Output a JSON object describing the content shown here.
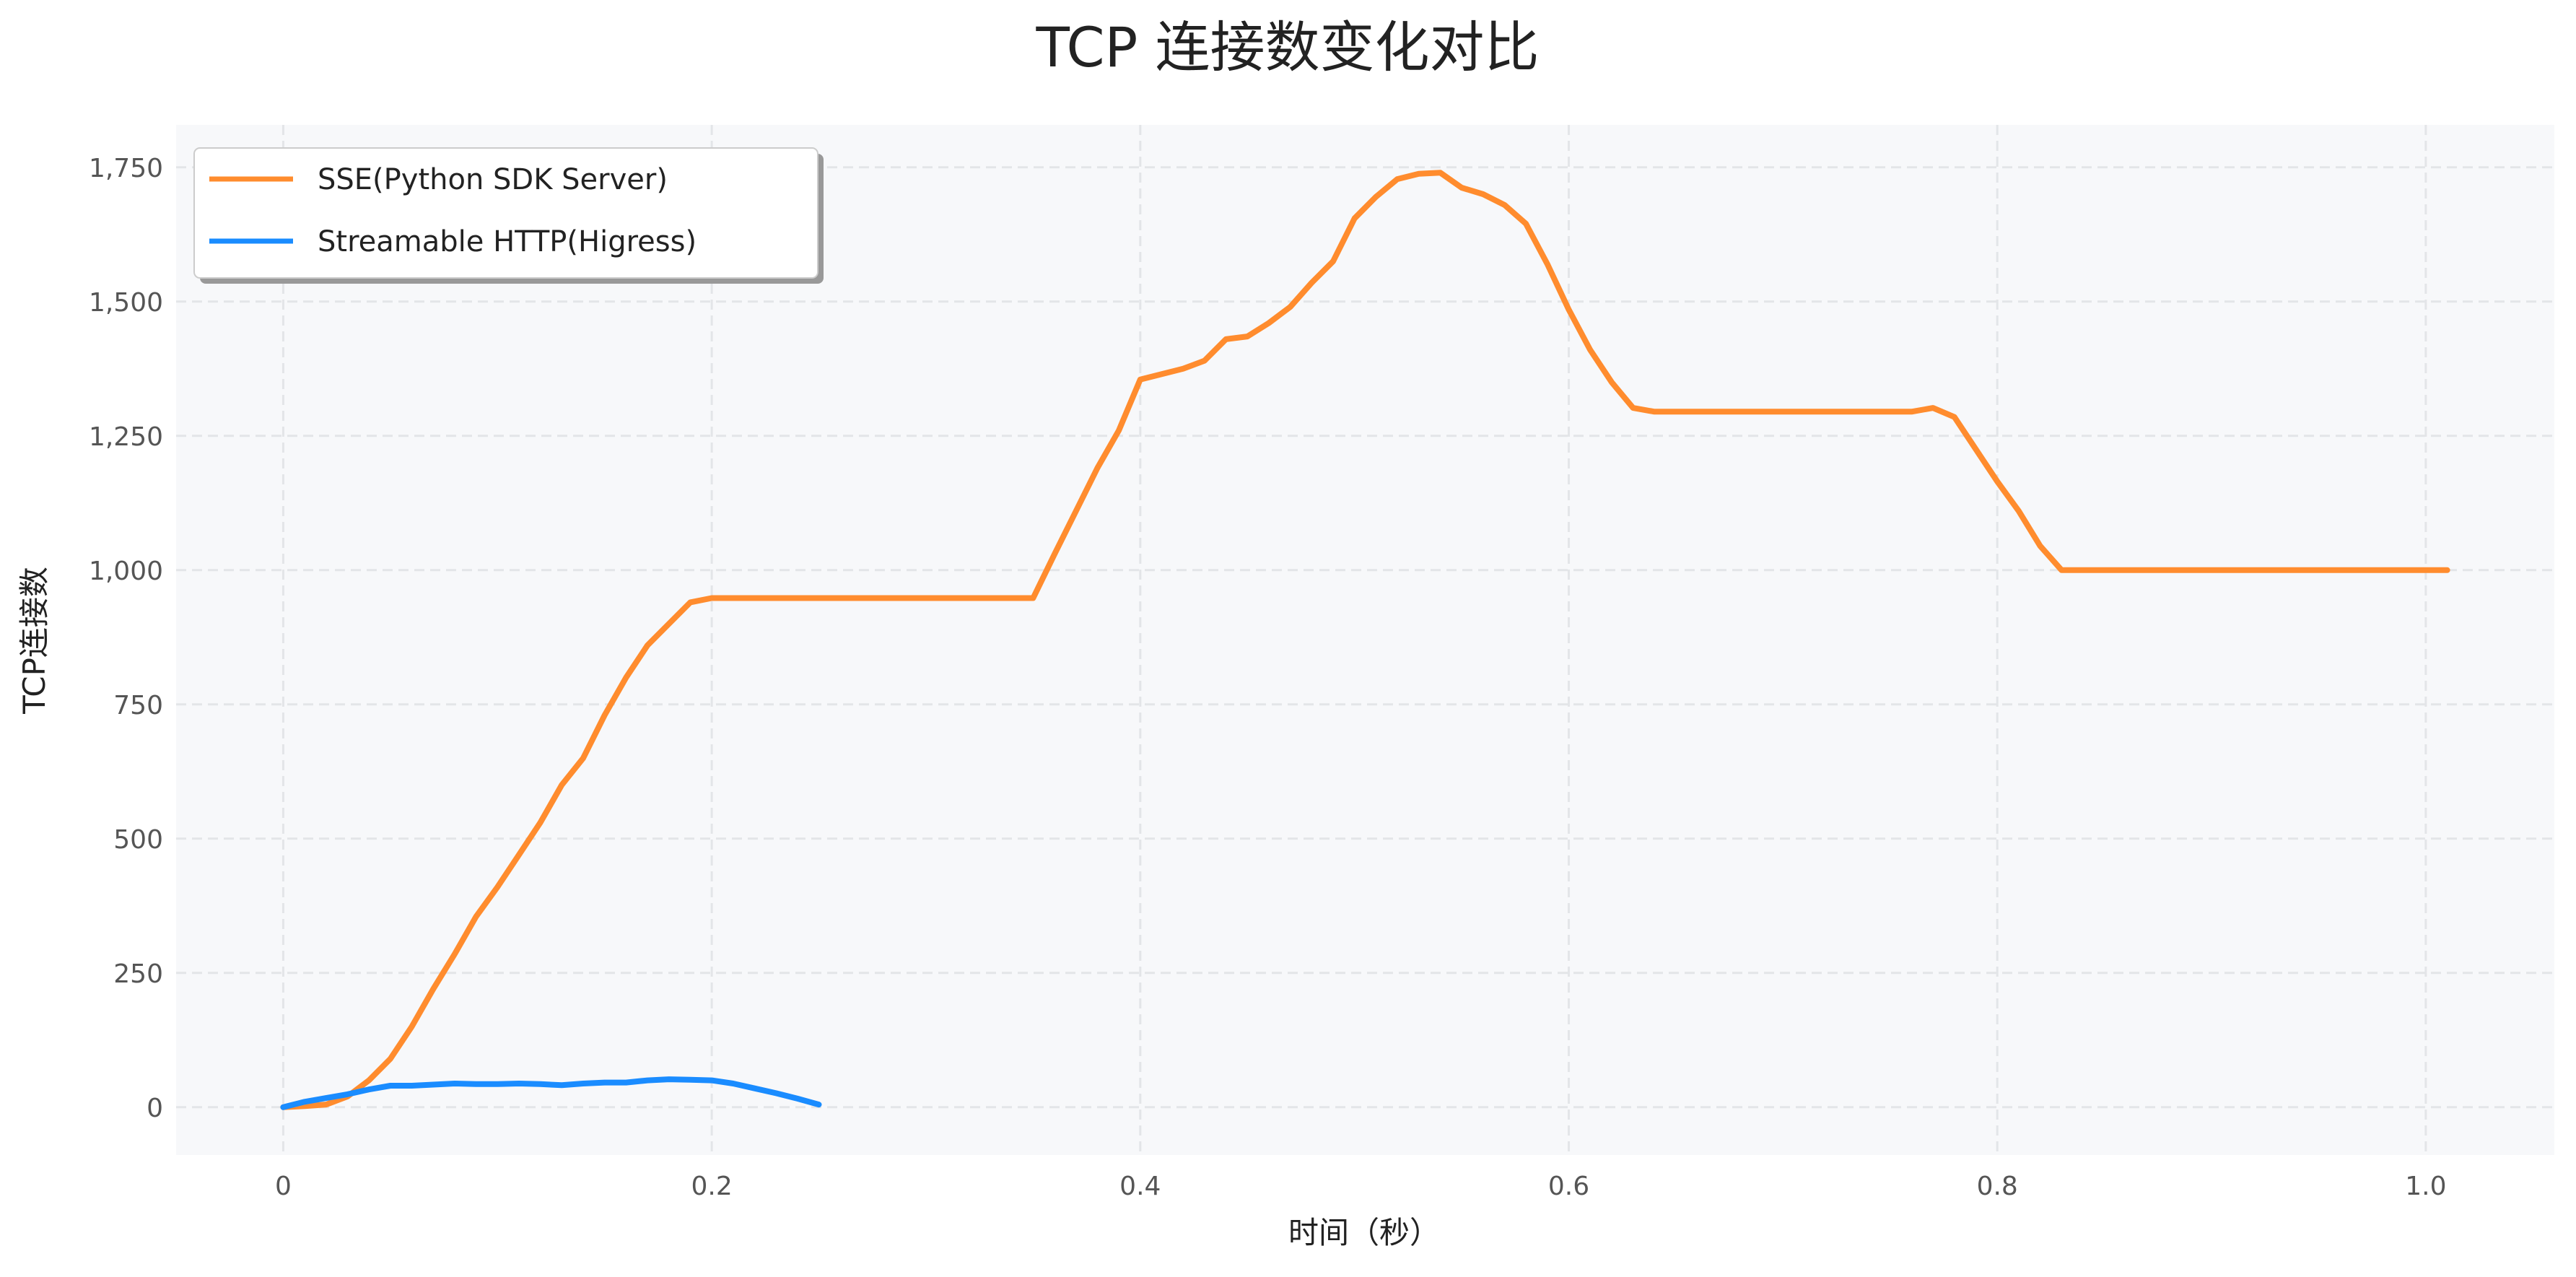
{
  "chart_data": {
    "type": "line",
    "title": "TCP 连接数变化对比",
    "xlabel": "时间（秒）",
    "ylabel": "TCP连接数",
    "xlim": [
      -0.05,
      1.06
    ],
    "ylim": [
      -89,
      1829
    ],
    "xticks": [
      0,
      0.2,
      0.4,
      0.6,
      0.8,
      1.0
    ],
    "xtick_labels": [
      "0",
      "0.2",
      "0.4",
      "0.6",
      "0.8",
      "1.0"
    ],
    "yticks": [
      0,
      250,
      500,
      750,
      1000,
      1250,
      1500,
      1750
    ],
    "ytick_labels": [
      "0",
      "250",
      "500",
      "750",
      "1,000",
      "1,250",
      "1,500",
      "1,750"
    ],
    "grid": true,
    "legend_position": "top-left",
    "colors": {
      "background": "#f7f8fa",
      "grid": "#e3e5e8"
    },
    "series": [
      {
        "name": "SSE(Python SDK Server)",
        "color": "#ff8c2e",
        "x": [
          0,
          0.01,
          0.02,
          0.03,
          0.04,
          0.05,
          0.06,
          0.07,
          0.08,
          0.09,
          0.1,
          0.11,
          0.12,
          0.13,
          0.14,
          0.15,
          0.16,
          0.17,
          0.18,
          0.19,
          0.2,
          0.25,
          0.3,
          0.35,
          0.36,
          0.37,
          0.38,
          0.39,
          0.4,
          0.41,
          0.42,
          0.43,
          0.44,
          0.45,
          0.46,
          0.47,
          0.48,
          0.49,
          0.5,
          0.51,
          0.52,
          0.53,
          0.54,
          0.55,
          0.56,
          0.57,
          0.58,
          0.59,
          0.6,
          0.61,
          0.62,
          0.63,
          0.64,
          0.7,
          0.76,
          0.77,
          0.78,
          0.79,
          0.8,
          0.81,
          0.82,
          0.83,
          0.9,
          1.01
        ],
        "y": [
          0,
          2,
          5,
          20,
          50,
          90,
          150,
          220,
          285,
          355,
          410,
          470,
          530,
          600,
          650,
          730,
          800,
          860,
          900,
          940,
          948,
          948,
          948,
          948,
          1030,
          1110,
          1190,
          1260,
          1355,
          1365,
          1375,
          1390,
          1430,
          1435,
          1460,
          1490,
          1535,
          1575,
          1655,
          1695,
          1728,
          1738,
          1740,
          1712,
          1700,
          1680,
          1645,
          1570,
          1485,
          1410,
          1350,
          1302,
          1295,
          1295,
          1295,
          1302,
          1285,
          1225,
          1165,
          1110,
          1045,
          1000,
          1000,
          1000
        ]
      },
      {
        "name": "Streamable HTTP(Higress)",
        "color": "#1a8cff",
        "x": [
          0,
          0.01,
          0.02,
          0.03,
          0.04,
          0.05,
          0.06,
          0.07,
          0.08,
          0.09,
          0.1,
          0.11,
          0.12,
          0.13,
          0.14,
          0.15,
          0.16,
          0.17,
          0.18,
          0.19,
          0.2,
          0.21,
          0.22,
          0.23,
          0.24,
          0.25
        ],
        "y": [
          0,
          10,
          17,
          24,
          33,
          40,
          40,
          42,
          44,
          43,
          43,
          44,
          43,
          41,
          44,
          46,
          46,
          50,
          52,
          51,
          50,
          44,
          35,
          26,
          16,
          5
        ]
      }
    ]
  }
}
